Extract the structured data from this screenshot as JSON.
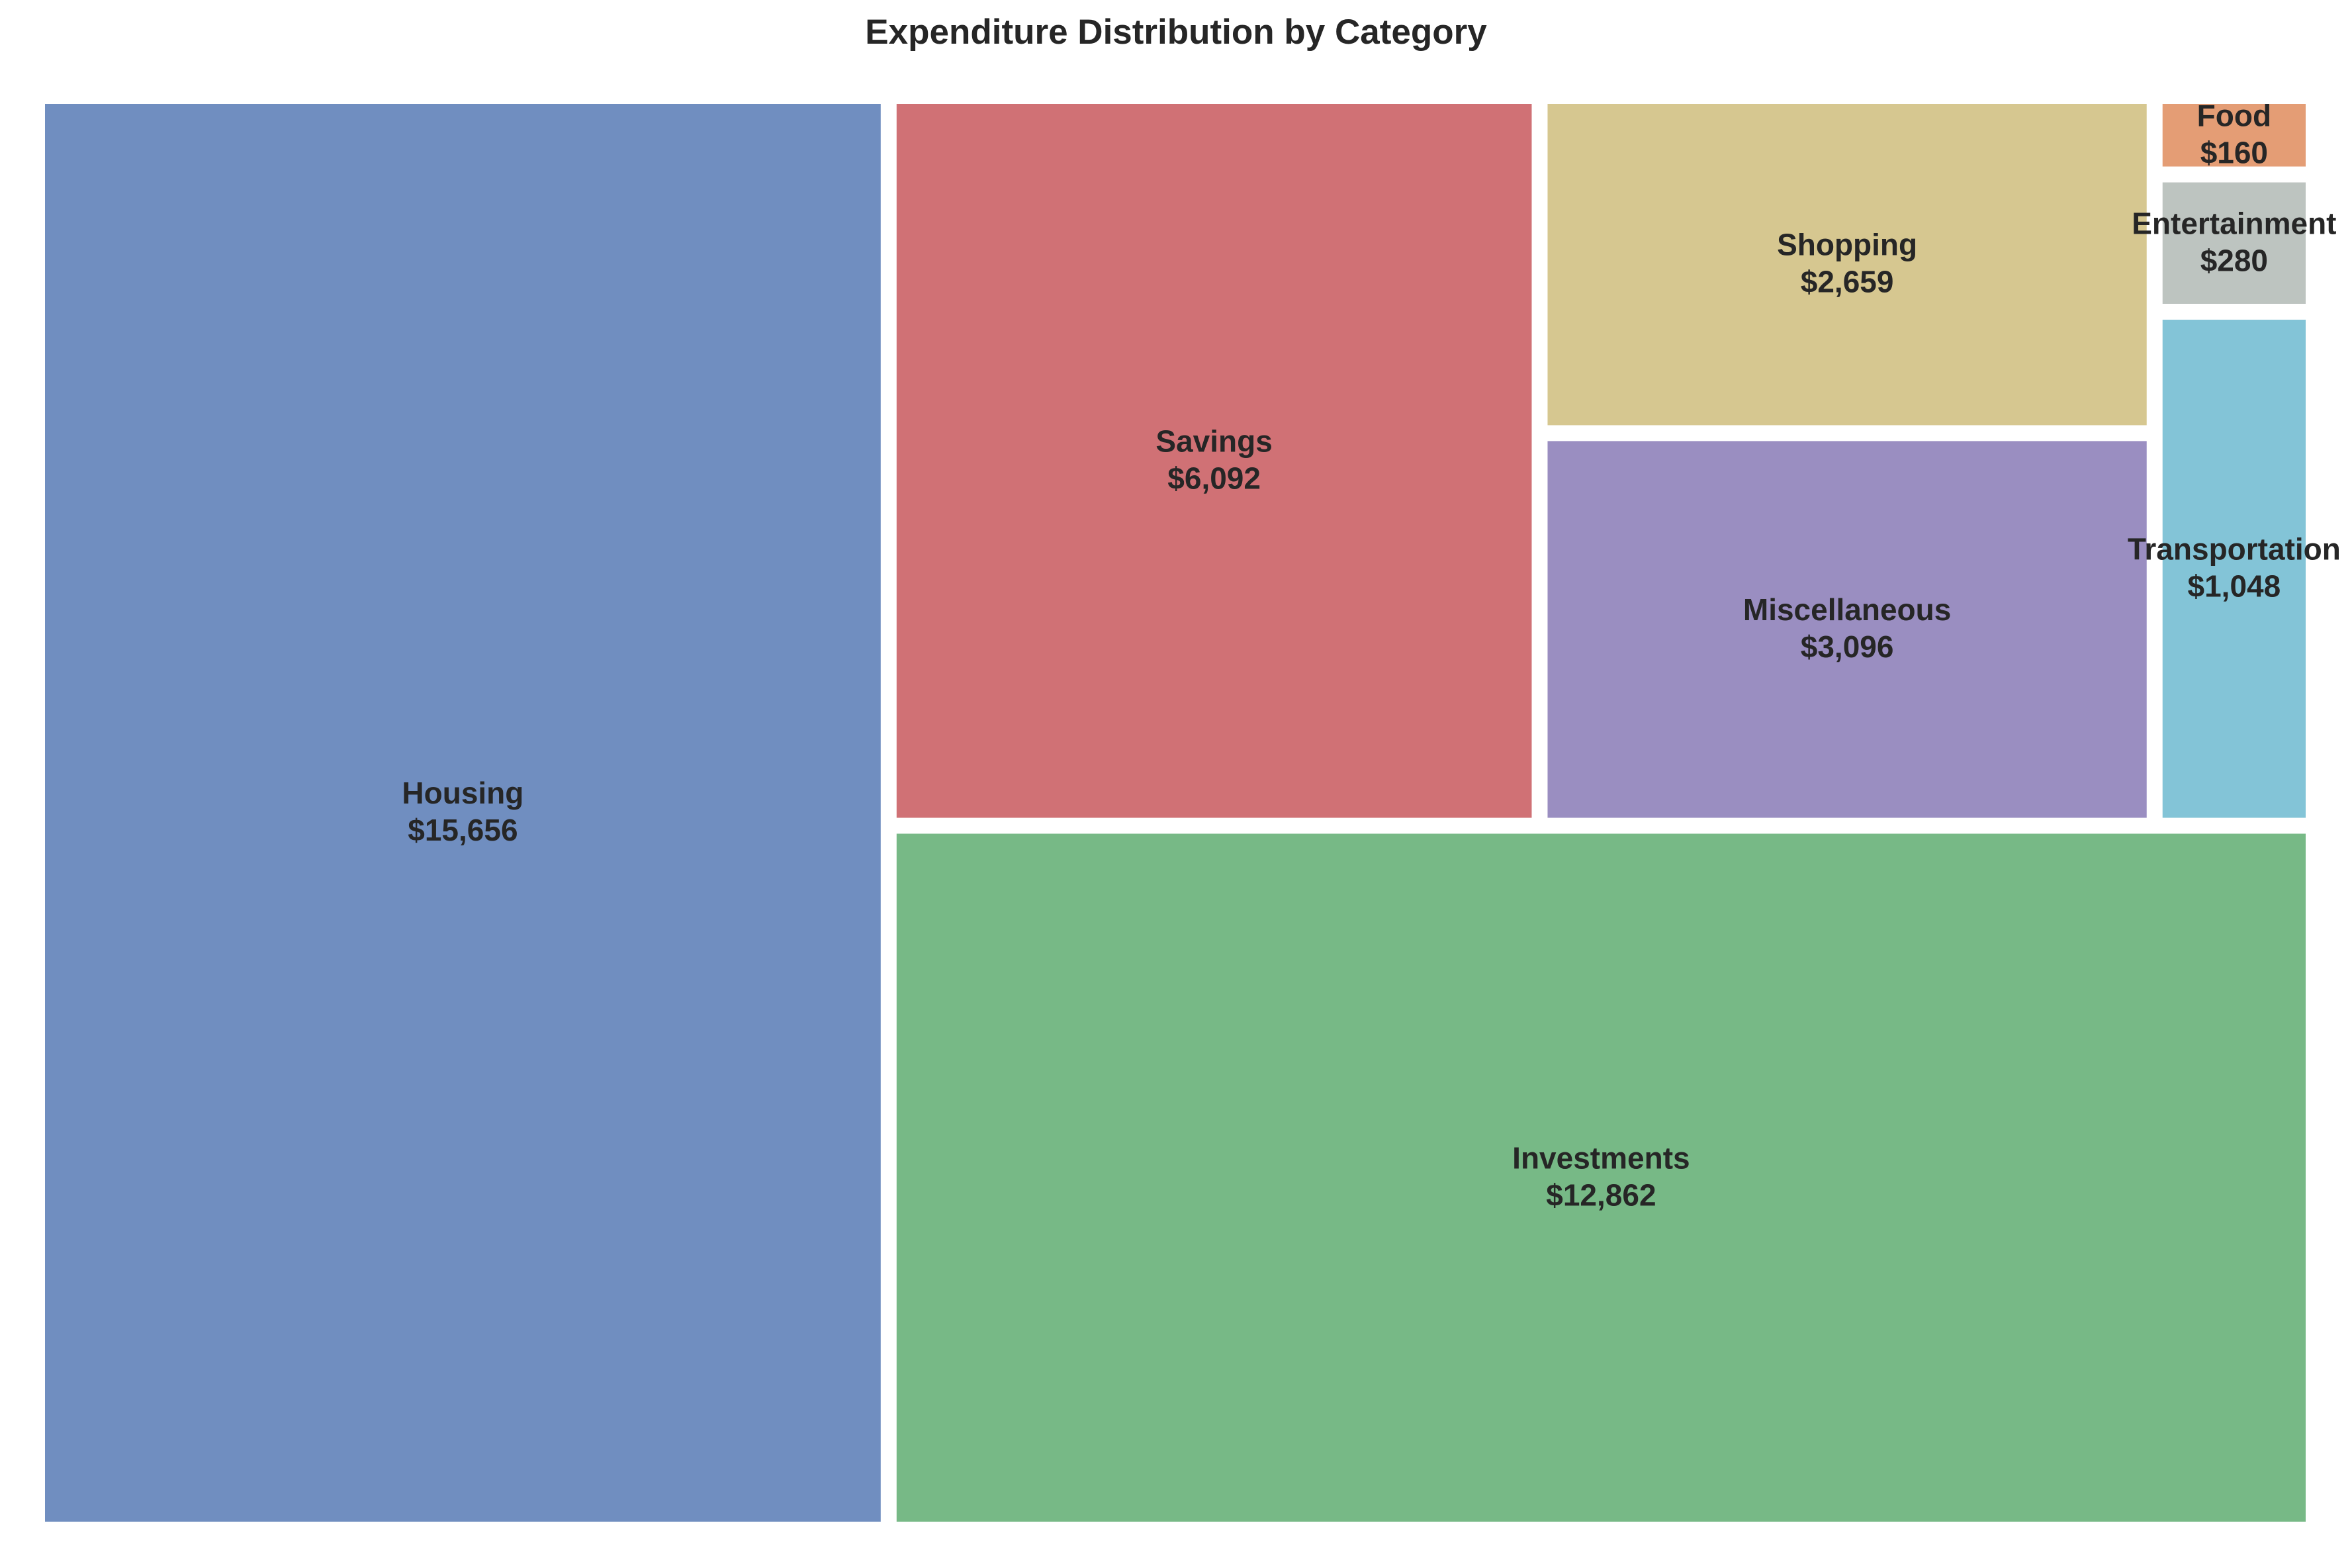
{
  "chart_data": {
    "type": "treemap",
    "title": "Expenditure Distribution by Category",
    "currency_symbol": "$",
    "tile_opacity": 0.8,
    "items": [
      {
        "name": "Housing",
        "value": 15656,
        "value_label": "$15,656",
        "color": "#4c72b0"
      },
      {
        "name": "Investments",
        "value": 12862,
        "value_label": "$12,862",
        "color": "#55a868"
      },
      {
        "name": "Savings",
        "value": 6092,
        "value_label": "$6,092",
        "color": "#c44e52"
      },
      {
        "name": "Miscellaneous",
        "value": 3096,
        "value_label": "$3,096",
        "color": "#8172b2"
      },
      {
        "name": "Shopping",
        "value": 2659,
        "value_label": "$2,659",
        "color": "#ccb974"
      },
      {
        "name": "Transportation",
        "value": 1048,
        "value_label": "$1,048",
        "color": "#64b5cd"
      },
      {
        "name": "Entertainment",
        "value": 280,
        "value_label": "$280",
        "color": "#adb5b0"
      },
      {
        "name": "Food",
        "value": 160,
        "value_label": "$160",
        "color": "#dd8452"
      }
    ]
  }
}
